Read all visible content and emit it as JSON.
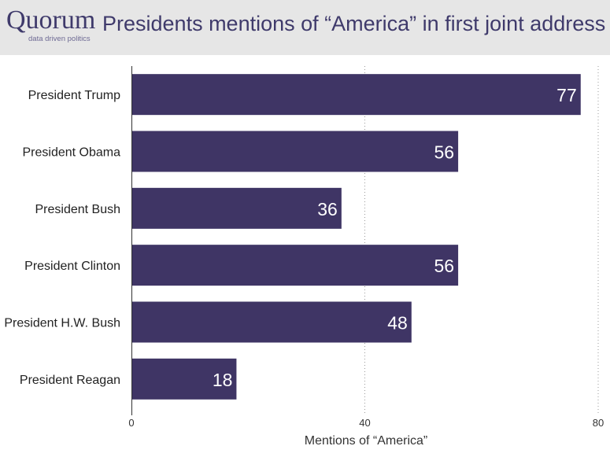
{
  "header": {
    "logo_word": "Quorum",
    "logo_tagline": "data driven politics",
    "title": "Presidents mentions of “America” in first joint address"
  },
  "chart_data": {
    "type": "bar",
    "orientation": "horizontal",
    "title": "Presidents mentions of “America” in first joint address",
    "categories": [
      "President Trump",
      "President Obama",
      "President Bush",
      "President Clinton",
      "President H.W. Bush",
      "President Reagan"
    ],
    "values": [
      77,
      56,
      36,
      56,
      48,
      18
    ],
    "xlabel": "Mentions of “America”",
    "ylabel": "",
    "xlim": [
      0,
      80
    ],
    "xticks": [
      0,
      40,
      80
    ],
    "grid": "vertical dotted at ticks",
    "data_labels": true,
    "bar_color": "#3f3565",
    "label_color": "#ffffff"
  }
}
